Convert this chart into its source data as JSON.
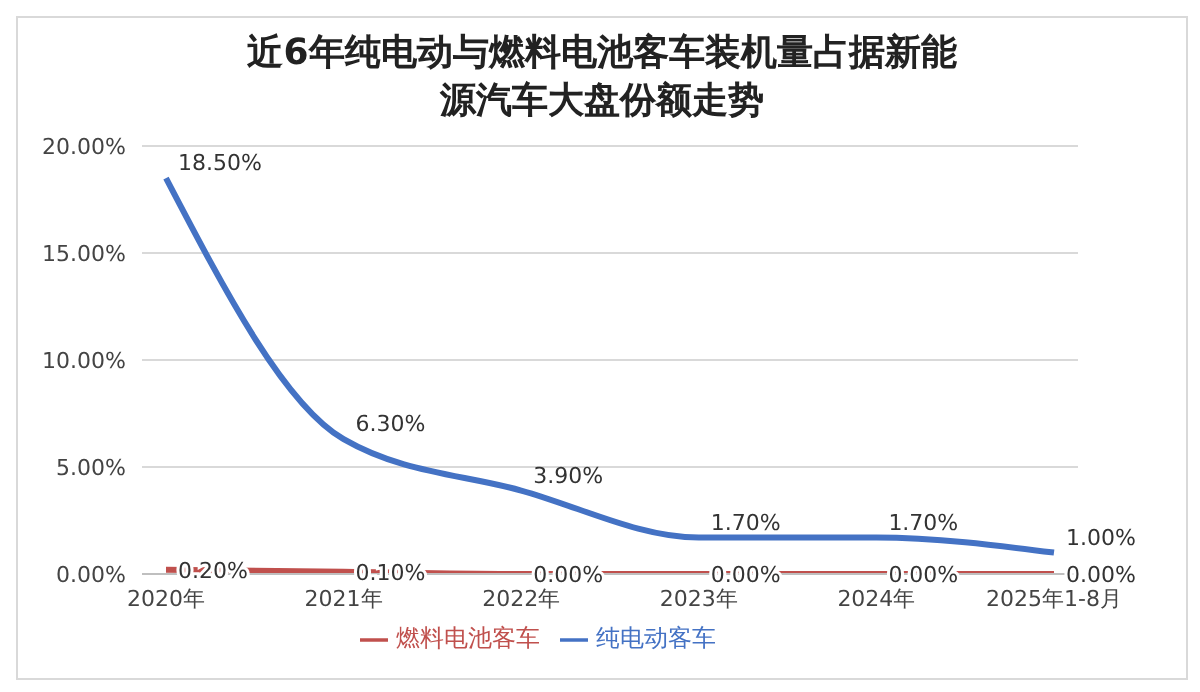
{
  "chart_data": {
    "type": "line",
    "title": "近6年纯电动与燃料电池客车装机量占据新能源汽车大盘份额走势",
    "categories": [
      "2020年",
      "2021年",
      "2022年",
      "2023年",
      "2024年",
      "2025年1-8月"
    ],
    "series": [
      {
        "name": "纯电动客车",
        "color": "#4472c4",
        "values": [
          18.5,
          6.3,
          3.9,
          1.7,
          1.7,
          1.0
        ],
        "value_labels": [
          "18.50%",
          "6.30%",
          "3.90%",
          "1.70%",
          "1.70%",
          "1.00%"
        ]
      },
      {
        "name": "燃料电池客车",
        "color": "#c0504d",
        "values": [
          0.2,
          0.1,
          0,
          0,
          0,
          0
        ],
        "value_labels": [
          "0.20%",
          "0.10%",
          "0.00%",
          "0.00%",
          "0.00%",
          "0.00%"
        ]
      }
    ],
    "ylim": [
      0,
      20
    ],
    "yticks": [
      {
        "value": 0,
        "label": "0.00%"
      },
      {
        "value": 5,
        "label": "5.00%"
      },
      {
        "value": 10,
        "label": "10.00%"
      },
      {
        "value": 15,
        "label": "15.00%"
      },
      {
        "value": 20,
        "label": "20.00%"
      }
    ],
    "grid": "y",
    "legend": "bottom",
    "marker": "none",
    "line_style": "solid"
  }
}
